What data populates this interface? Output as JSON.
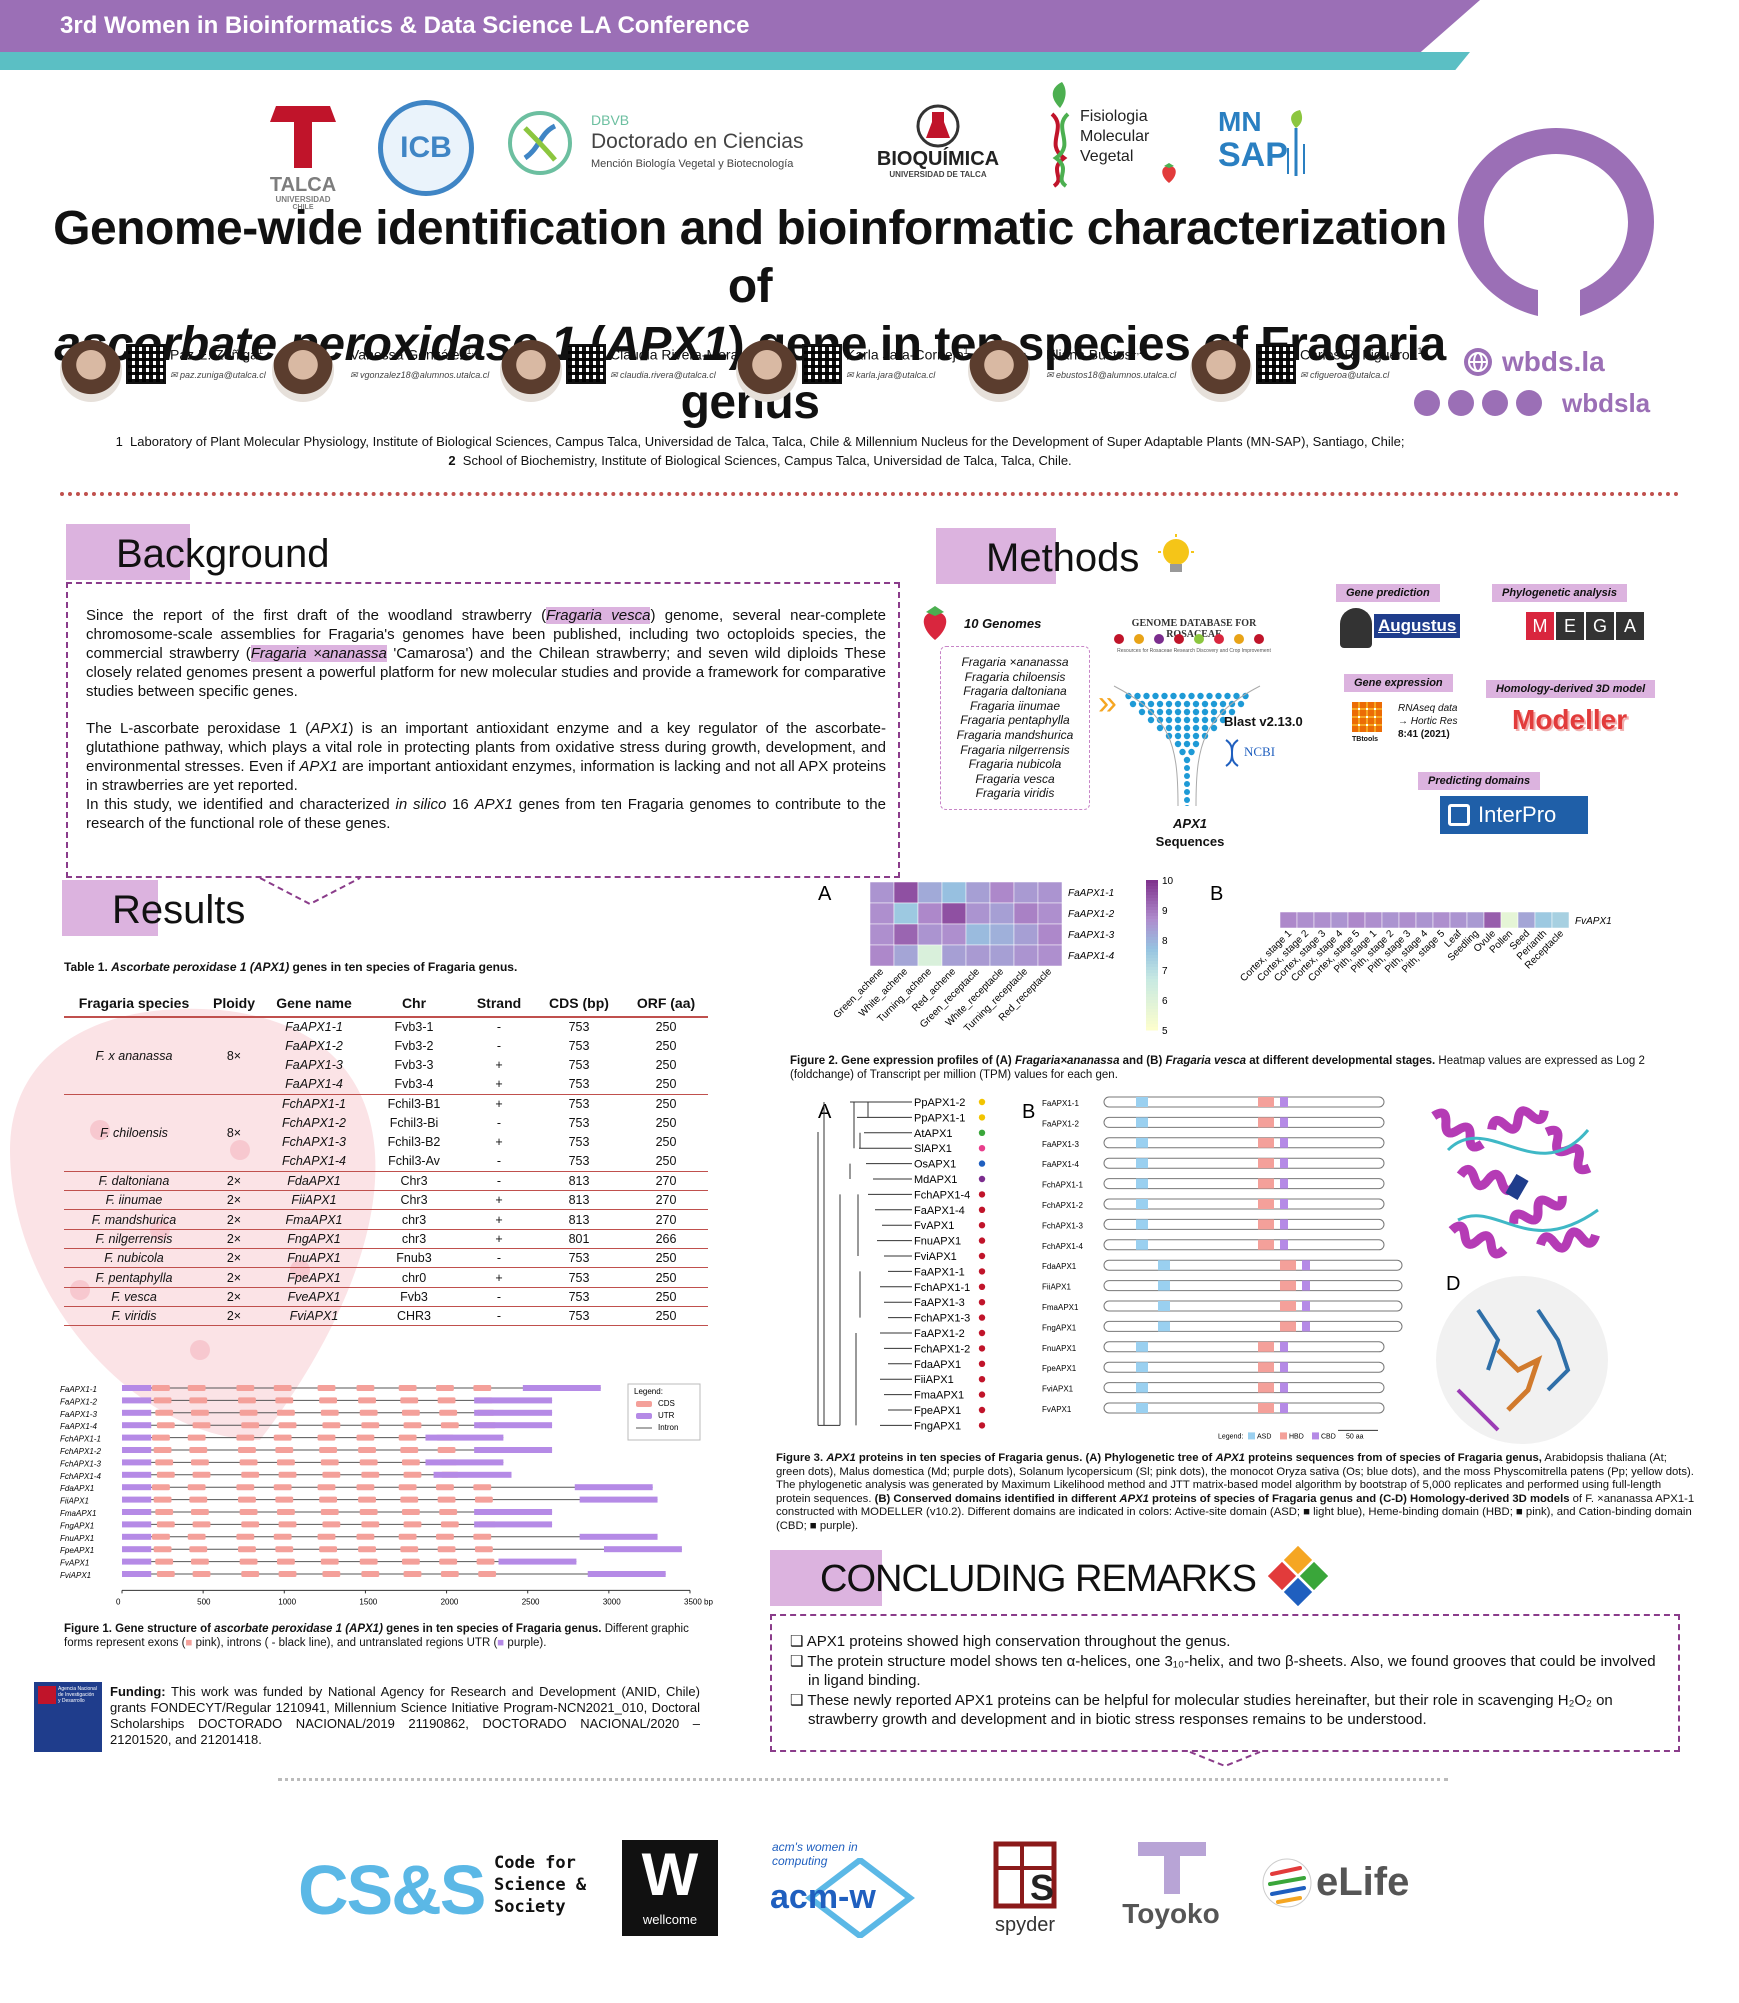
{
  "header": {
    "conference": "3rd Women in Bioinformatics & Data Science LA Conference"
  },
  "logos": {
    "talca": "TALCA",
    "talca_sub": "UNIVERSIDAD",
    "talca_sub2": "CHILE",
    "icb": "ICB",
    "dbvb_abbr": "DBVB",
    "dbvb_title": "Doctorado en Ciencias",
    "dbvb_sub": "Mención Biología Vegetal y Biotecnología",
    "bioquimica": "BIOQUÍMICA",
    "bioquimica_sub": "UNIVERSIDAD DE TALCA",
    "fisio_1": "Fisiologia",
    "fisio_2": "Molecular",
    "fisio_3": "Vegetal",
    "mnsap_1": "MN",
    "mnsap_2": "SAP",
    "wbds_site": "wbds.la",
    "wbds_social": "wbdsla"
  },
  "title": {
    "line1": "Genome-wide identification and bioinformatic characterization of",
    "line2_italic": "ascorbate peroxidase 1",
    "line2_mid": " (",
    "line2_gene": "APX1",
    "line2_end": ") gene in ten species of Fragaria genus"
  },
  "authors": [
    {
      "name": "Paz E. Zúñiga",
      "sup": "1",
      "email": "paz.zuniga@utalca.cl"
    },
    {
      "name": "Vanessa González",
      "sup": "1,2",
      "email": "vgonzalez18@alumnos.utalca.cl"
    },
    {
      "name": "Claudia Rivera-Mora",
      "sup": "1",
      "email": "claudia.rivera@utalca.cl"
    },
    {
      "name": "Karla Jara-Cornejo",
      "sup": "1",
      "email": "karla.jara@utalca.cl"
    },
    {
      "name": "Eliana Bustos",
      "sup": "1,2",
      "email": "ebustos18@alumnos.utalca.cl"
    },
    {
      "name": "Carlos R. Figueroa",
      "sup": "1",
      "email": "cfigueroa@utalca.cl"
    }
  ],
  "affiliations": {
    "a1_num": "1",
    "a1": "Laboratory of Plant Molecular Physiology, Institute of Biological Sciences, Campus Talca, Universidad de Talca, Talca, Chile & Millennium Nucleus for the Development of Super Adaptable Plants (MN-SAP), Santiago, Chile;",
    "a2_num": "2",
    "a2": "School of Biochemistry, Institute of Biological Sciences, Campus Talca, Universidad de Talca, Talca, Chile."
  },
  "background": {
    "heading": "Background",
    "p1_a": "Since the report of the first draft of the woodland strawberry (",
    "p1_hl1": "Fragaria vesca",
    "p1_b": ") genome, several near-complete chromosome-scale assemblies for Fragaria's genomes have been published, including two octoploids species, the commercial strawberry (",
    "p1_hl2": "Fragaria ×ananassa",
    "p1_c": " 'Camarosa') and the Chilean strawberry; and seven wild diploids These closely related genomes present a powerful platform for new molecular studies and provide a framework for comparative studies between specific genes.",
    "p2_a": "The L-ascorbate peroxidase 1 (",
    "p2_gene": "APX1",
    "p2_b": ") is an important antioxidant enzyme and a key regulator of the ascorbate-glutathione pathway, which plays a vital role in protecting plants from oxidative stress during growth, development, and environmental stresses. Even if ",
    "p2_gene2": "APX1",
    "p2_c": " are important antioxidant enzymes, information is lacking and not all APX proteins in strawberries are yet reported.",
    "p3_a": "In this study, we identified and characterized ",
    "p3_it": "in silico",
    "p3_b": " 16 ",
    "p3_gene": "APX1",
    "p3_c": " genes from ten Fragaria genomes to contribute to the research of the functional role of these genes."
  },
  "methods": {
    "heading": "Methods",
    "ten_genomes": "10 Genomes",
    "genomes": [
      "Fragaria ×ananassa",
      "Fragaria chiloensis",
      "Fragaria daltoniana",
      "Fragaria iinumae",
      "Fragaria pentaphylla",
      "Fragaria mandshurica",
      "Fragaria nilgerrensis",
      "Fragaria nubicola",
      "Fragaria vesca",
      "Fragaria viridis"
    ],
    "gdr": "GENOME DATABASE FOR ROSACEAE",
    "gdr_sub": "Resources for Rosaceae Research Discovery and Crop Improvement",
    "blast": "Blast v2.13.0",
    "ncbi": "NCBI",
    "apx1_seq_1": "APX1",
    "apx1_seq_2": "Sequences",
    "gene_prediction": "Gene prediction",
    "augustus": "Augustus",
    "phylo": "Phylogenetic analysis",
    "mega": [
      "M",
      "E",
      "G",
      "A"
    ],
    "gene_expr": "Gene expression",
    "tbtools": "TBtools",
    "rnaseq_1": "RNAseq data",
    "rnaseq_2": "→ Hortic Res",
    "rnaseq_3": "8:41 (2021)",
    "homology": "Homology-derived 3D model",
    "modeller": "Modeller",
    "pred_domains": "Predicting domains",
    "interpro": "InterPro"
  },
  "results": {
    "heading": "Results",
    "table_caption_a": "Table 1. ",
    "table_caption_it": "Ascorbate peroxidase 1 (APX1)",
    "table_caption_b": " genes in ten species of Fragaria genus.",
    "table_headers": [
      "Fragaria species",
      "Ploidy",
      "Gene name",
      "Chr",
      "Strand",
      "CDS (bp)",
      "ORF (aa)"
    ],
    "table_groups": [
      {
        "species": "F. x ananassa",
        "ploidy": "8×",
        "rows": [
          [
            "FaAPX1-1",
            "Fvb3-1",
            "-",
            "753",
            "250"
          ],
          [
            "FaAPX1-2",
            "Fvb3-2",
            "-",
            "753",
            "250"
          ],
          [
            "FaAPX1-3",
            "Fvb3-3",
            "+",
            "753",
            "250"
          ],
          [
            "FaAPX1-4",
            "Fvb3-4",
            "+",
            "753",
            "250"
          ]
        ]
      },
      {
        "species": "F. chiloensis",
        "ploidy": "8×",
        "rows": [
          [
            "FchAPX1-1",
            "Fchil3-B1",
            "+",
            "753",
            "250"
          ],
          [
            "FchAPX1-2",
            "Fchil3-Bi",
            "-",
            "753",
            "250"
          ],
          [
            "FchAPX1-3",
            "Fchil3-B2",
            "+",
            "753",
            "250"
          ],
          [
            "FchAPX1-4",
            "Fchil3-Av",
            "-",
            "753",
            "250"
          ]
        ]
      },
      {
        "species": "F. daltoniana",
        "ploidy": "2×",
        "rows": [
          [
            "FdaAPX1",
            "Chr3",
            "-",
            "813",
            "270"
          ]
        ]
      },
      {
        "species": "F. iinumae",
        "ploidy": "2×",
        "rows": [
          [
            "FiiAPX1",
            "Chr3",
            "+",
            "813",
            "270"
          ]
        ]
      },
      {
        "species": "F. mandshurica",
        "ploidy": "2×",
        "rows": [
          [
            "FmaAPX1",
            "chr3",
            "+",
            "813",
            "270"
          ]
        ]
      },
      {
        "species": "F. nilgerrensis",
        "ploidy": "2×",
        "rows": [
          [
            "FngAPX1",
            "chr3",
            "+",
            "801",
            "266"
          ]
        ]
      },
      {
        "species": "F. nubicola",
        "ploidy": "2×",
        "rows": [
          [
            "FnuAPX1",
            "Fnub3",
            "-",
            "753",
            "250"
          ]
        ]
      },
      {
        "species": "F. pentaphylla",
        "ploidy": "2×",
        "rows": [
          [
            "FpeAPX1",
            "chr0",
            "+",
            "753",
            "250"
          ]
        ]
      },
      {
        "species": "F. vesca",
        "ploidy": "2×",
        "rows": [
          [
            "FveAPX1",
            "Fvb3",
            "-",
            "753",
            "250"
          ]
        ]
      },
      {
        "species": "F. viridis",
        "ploidy": "2×",
        "rows": [
          [
            "FviAPX1",
            "CHR3",
            "-",
            "753",
            "250"
          ]
        ]
      }
    ]
  },
  "fig1": {
    "genes": [
      "FaAPX1-1",
      "FaAPX1-2",
      "FaAPX1-3",
      "FaAPX1-4",
      "FchAPX1-1",
      "FchAPX1-2",
      "FchAPX1-3",
      "FchAPX1-4",
      "FdaAPX1",
      "FiiAPX1",
      "FmaAPX1",
      "FngAPX1",
      "FnuAPX1",
      "FpeAPX1",
      "FvAPX1",
      "FviAPX1"
    ],
    "gene_lengths": [
      2950,
      2650,
      2650,
      2650,
      2350,
      2650,
      2350,
      2400,
      3270,
      3300,
      2650,
      2650,
      3300,
      3450,
      2800,
      3350
    ],
    "legend_title": "Legend:",
    "legend": [
      "CDS",
      "UTR",
      "Intron"
    ],
    "xticks": [
      "0",
      "500",
      "1000",
      "1500",
      "2000",
      "2500",
      "3000",
      "3500 bp"
    ],
    "xmax": 3500,
    "colors": {
      "cds": "#f4a09a",
      "utr": "#b58ae6",
      "intron": "#555555"
    },
    "caption_a": "Figure 1. Gene structure of ",
    "caption_it": "ascorbate peroxidase 1 (APX1)",
    "caption_b": " genes in ten species of Fragaria genus.",
    "caption_c": " Different graphic forms represent exons (",
    "caption_d": " pink), introns ( - black line), and untranslated regions UTR (",
    "caption_e": " purple)."
  },
  "fig2": {
    "label_a": "A",
    "label_b": "B",
    "a_rows": [
      "FaAPX1-1",
      "FaAPX1-2",
      "FaAPX1-3",
      "FaAPX1-4"
    ],
    "a_cols": [
      "Green_achene",
      "White_achene",
      "Turning_achene",
      "Red_achene",
      "Green_receptacle",
      "White_receptacle",
      "Turning_receptacle",
      "Red_receptacle"
    ],
    "a_values": [
      [
        8.6,
        9.6,
        8.2,
        7.8,
        8.4,
        8.8,
        8.5,
        8.6
      ],
      [
        8.7,
        7.6,
        8.8,
        9.6,
        8.6,
        8.4,
        8.9,
        8.7
      ],
      [
        8.7,
        9.3,
        8.6,
        8.7,
        7.9,
        8.1,
        8.4,
        8.8
      ],
      [
        8.8,
        8.3,
        6.2,
        8.4,
        8.5,
        8.4,
        8.6,
        8.7
      ]
    ],
    "scale_ticks": [
      "10",
      "9",
      "8",
      "7",
      "6",
      "5"
    ],
    "vmin": 5,
    "vmax": 10,
    "b_row": "FvAPX1",
    "b_cols": [
      "Cortex, stage 1",
      "Cortex, stage 2",
      "Cortex, stage 3",
      "Cortex, stage 4",
      "Cortex, stage 5",
      "Pith, stage 1",
      "Pith, stage 2",
      "Pith, stage 3",
      "Pith, stage 4",
      "Pith, stage 5",
      "Leaf",
      "Seedling",
      "Ovule",
      "Pollen",
      "Seed",
      "Perianth",
      "Receptacle"
    ],
    "b_values": [
      8.8,
      8.7,
      8.7,
      8.6,
      8.8,
      8.7,
      8.6,
      8.7,
      8.6,
      8.7,
      8.6,
      8.5,
      9.4,
      5.8,
      8.3,
      7.6,
      7.4
    ],
    "caption_a": "Figure 2. Gene expression profiles of (A) ",
    "caption_it1": "Fragaria×ananassa",
    "caption_b": " and (B) ",
    "caption_it2": "Fragaria vesca",
    "caption_c": " at different developmental stages.",
    "caption_d": " Heatmap values are expressed as Log 2 (foldchange) of Transcript per million (TPM) values for each gen."
  },
  "fig3": {
    "label_a": "A",
    "label_b": "B",
    "label_c": "C",
    "label_d": "D",
    "tree_leaves": [
      "PpAPX1-2",
      "PpAPX1-1",
      "AtAPX1",
      "SlAPX1",
      "OsAPX1",
      "MdAPX1",
      "FchAPX1-4",
      "FaAPX1-4",
      "FvAPX1",
      "FnuAPX1",
      "FviAPX1",
      "FaAPX1-1",
      "FchAPX1-1",
      "FaAPX1-3",
      "FchAPX1-3",
      "FaAPX1-2",
      "FchAPX1-2",
      "FdaAPX1",
      "FiiAPX1",
      "FmaAPX1",
      "FpeAPX1",
      "FngAPX1"
    ],
    "tree_colors": [
      "#f2c400",
      "#f2c400",
      "#3aa63a",
      "#e83e8c",
      "#1f5fbf",
      "#7b2d8e",
      "#c0142a",
      "#c0142a",
      "#c0142a",
      "#c0142a",
      "#c0142a",
      "#c0142a",
      "#c0142a",
      "#c0142a",
      "#c0142a",
      "#c0142a",
      "#c0142a",
      "#c0142a",
      "#c0142a",
      "#c0142a",
      "#c0142a",
      "#c0142a"
    ],
    "domain_genes": [
      "FaAPX1-1",
      "FaAPX1-2",
      "FaAPX1-3",
      "FaAPX1-4",
      "FchAPX1-1",
      "FchAPX1-2",
      "FchAPX1-3",
      "FchAPX1-4",
      "FdaAPX1",
      "FiiAPX1",
      "FmaAPX1",
      "FngAPX1",
      "FnuAPX1",
      "FpeAPX1",
      "FviAPX1",
      "FvAPX1"
    ],
    "domain_legend": "Legend:",
    "domain_names": [
      "ASD",
      "HBD",
      "CBD"
    ],
    "scale_bar": "50 aa",
    "caption_a": "Figure 3. ",
    "caption_it": "APX1",
    "caption_b": " proteins in ten species of Fragaria genus. (A) Phylogenetic tree of ",
    "caption_b_it": "APX1",
    "caption_b2": " proteins sequences from of species of Fragaria genus,",
    "caption_rest": " Arabidopsis thaliana (At; green dots), Malus domestica (Md; purple dots), Solanum lycopersicum (Sl; pink dots), the monocot Oryza sativa (Os; blue dots), and the moss Physcomitrella patens (Pp; yellow dots). The phylogenetic analysis was generated by Maximum Likelihood method and JTT matrix-based model algorithm by bootstrap of 5,000 replicates and performed using full-length protein sequences.",
    "caption_b_bold": " (B) Conserved domains identified in different ",
    "caption_b_bold_it": "APX1",
    "caption_b_bold2": " proteins of species of Fragaria genus and (C-D) Homology-derived 3D models",
    "caption_end": " of F. ×ananassa APX1-1 constructed with MODELLER (v10.2). Different domains are indicated in colors: Active-site domain (ASD; ■ light blue), Heme-binding domain (HBD; ■ pink), and Cation-binding domain (CBD; ■ purple)."
  },
  "conclusions": {
    "heading": "CONCLUDING REMARKS",
    "items": [
      "APX1 proteins showed high conservation throughout  the genus.",
      "The protein structure model shows ten α-helices, one 3₁₀-helix, and two β-sheets. Also, we found grooves that could be involved in ligand binding.",
      "These newly reported APX1 proteins can be helpful for molecular studies hereinafter, but their role in scavenging H₂O₂ on strawberry growth and development and in biotic stress responses remains to be understood."
    ],
    "bullet": "❑"
  },
  "funding": {
    "label": "Funding:",
    "text": " This work was funded by National Agency for Research and Development (ANID, Chile) grants FONDECYT/Regular 1210941, Millennium Science Initiative Program-NCN2021_010, Doctoral Scholarships DOCTORADO NACIONAL/2019 21190862, DOCTORADO NACIONAL/2020 – 21201520, and 21201418.",
    "anid_text": "Agencia Nacional de Investigación y Desarrollo"
  },
  "sponsors": {
    "css": "CS&S",
    "css_1": "Code for",
    "css_2": "Science &",
    "css_3": "Society",
    "wellcome_w": "W",
    "wellcome": "wellcome",
    "acm_1": "acm's women in",
    "acm_2": "computing",
    "acm": "acm-w",
    "spyder": "spyder",
    "toyoko": "Toyoko",
    "elife": "eLife"
  }
}
